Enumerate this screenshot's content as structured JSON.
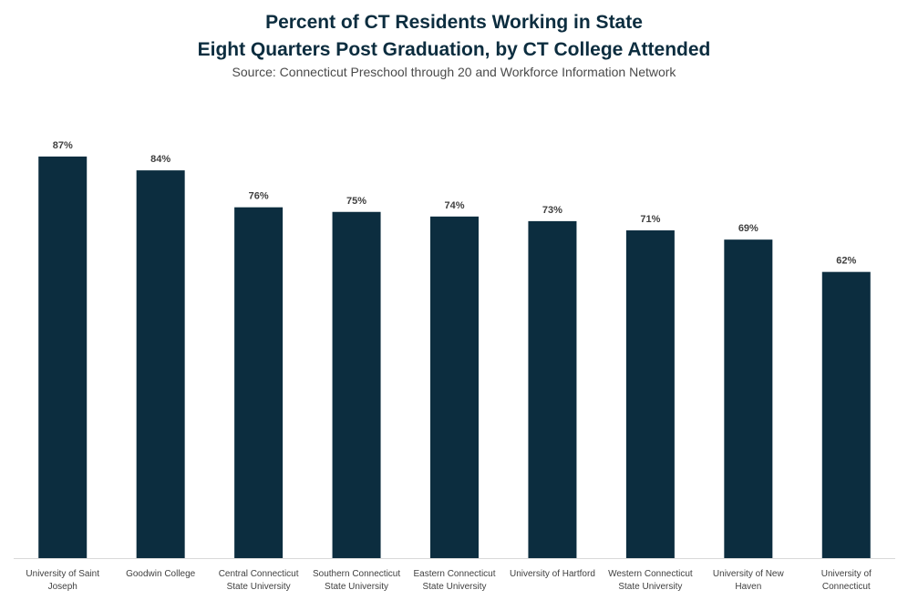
{
  "chart_data": {
    "type": "bar",
    "title": "Percent of CT Residents Working in State\nEight Quarters Post Graduation, by CT College Attended",
    "subtitle": "Source: Connecticut Preschool through 20 and Workforce Information Network",
    "categories": [
      [
        "University of Saint",
        "Joseph"
      ],
      [
        "Goodwin College"
      ],
      [
        "Central Connecticut",
        "State University"
      ],
      [
        "Southern Connecticut",
        "State University"
      ],
      [
        "Eastern Connecticut",
        "State University"
      ],
      [
        "University of Hartford"
      ],
      [
        "Western Connecticut",
        "State University"
      ],
      [
        "University of New",
        "Haven"
      ],
      [
        "University of",
        "Connecticut"
      ]
    ],
    "values": [
      87,
      84,
      76,
      75,
      74,
      73,
      71,
      69,
      62
    ],
    "value_labels": [
      "87%",
      "84%",
      "76%",
      "75%",
      "74%",
      "73%",
      "71%",
      "69%",
      "62%"
    ],
    "ylim": [
      0,
      100
    ],
    "grid": false,
    "bar_color": "#0c2d3f"
  }
}
